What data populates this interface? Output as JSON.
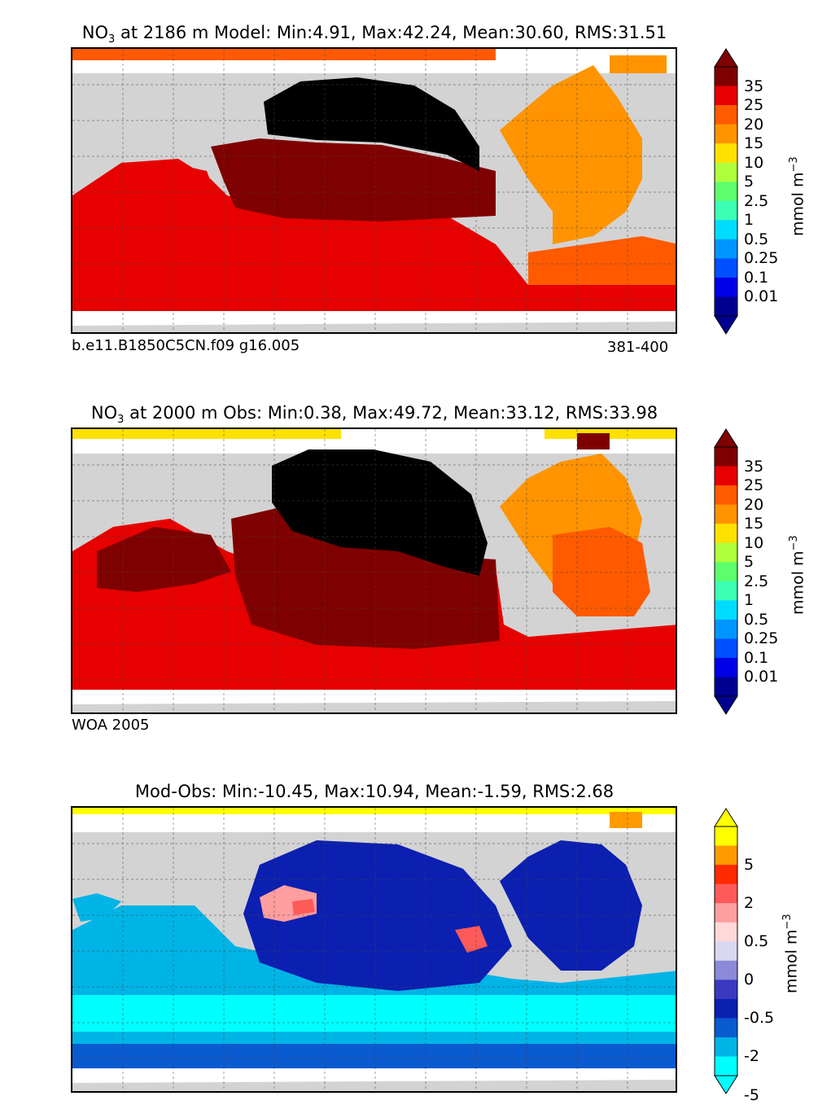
{
  "panels": [
    {
      "id": "model",
      "title_var": "NO",
      "title_sub": "3",
      "title_rest": " at 2186 m Model: Min:4.91, Max:42.24, Mean:30.60, RMS:31.51",
      "left_label": "b.e11.B1850C5CN.f09 g16.005",
      "right_label": "381-400"
    },
    {
      "id": "obs",
      "title_var": "NO",
      "title_sub": "3",
      "title_rest": " at 2000 m Obs: Min:0.38, Max:49.72, Mean:33.12, RMS:33.98",
      "left_label": "WOA 2005",
      "right_label": ""
    },
    {
      "id": "diff",
      "title_var": "",
      "title_sub": "",
      "title_rest": "Mod-Obs: Min:-10.45, Max:10.94, Mean:-1.59, RMS:2.68",
      "left_label": "",
      "right_label": ""
    }
  ],
  "colorbar_top": {
    "unit_label": "mmol m",
    "unit_sup": "−3",
    "ticks": [
      "35",
      "25",
      "20",
      "15",
      "10",
      "5",
      "2.5",
      "1",
      "0.5",
      "0.25",
      "0.1",
      "0.01"
    ],
    "colors": [
      "#7f0000",
      "#e60000",
      "#ff5a00",
      "#ff9400",
      "#ffe100",
      "#b0ff3c",
      "#5cff6b",
      "#3cffb4",
      "#00dcff",
      "#0096ff",
      "#0050ff",
      "#0000e6",
      "#000090"
    ]
  },
  "colorbar_diff": {
    "unit_label": "mmol m",
    "unit_sup": "−3",
    "ticks": [
      "5",
      "2",
      "0.5",
      "0",
      "-0.5",
      "-2",
      "-5"
    ],
    "colors": [
      "#ffff00",
      "#ff9a00",
      "#ff2a00",
      "#ff5a5a",
      "#ff9e9e",
      "#ffd8d8",
      "#d8d8f0",
      "#8a8ad8",
      "#3a3ac0",
      "#0b1fb0",
      "#0a5ad0",
      "#00b4e6",
      "#00ffff"
    ]
  },
  "map_colors": {
    "land": "#d3d3d3",
    "nodata": "#ffffff",
    "model_north_atlantic": "#ff9400",
    "model_pacific_core": "#000000",
    "model_pacific_band": "#7f0000",
    "model_south": "#e60000",
    "obs_arctic": "#ffe100",
    "diff_main": "#0b1fb0",
    "diff_south": "#00d0f0"
  }
}
